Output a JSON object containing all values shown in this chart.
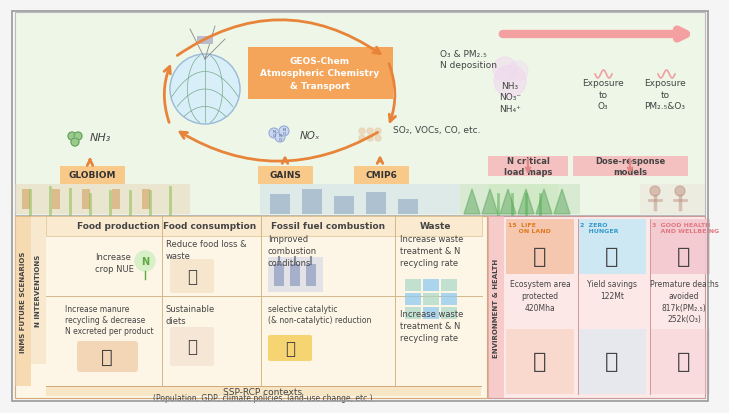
{
  "bg_color": "#f5f5f5",
  "top_panel_bg": "#eef6e8",
  "bottom_left_bg": "#fdf5e6",
  "bottom_right_bg": "#fde8e8",
  "geos_box_bg": "#f5a55a",
  "geos_box_text": "GEOS-Chem\nAtmospheric Chemistry\n& Transport",
  "arrow_color": "#e8843a",
  "pink_arrow_color": "#f5a0a0",
  "model_box_bg": "#f9c98a",
  "model_box_text_color": "#333333",
  "side_label_left1": "INMS FUTURE SCENARIOS",
  "side_label_left2": "N INTERVENTIONS",
  "side_label_right": "ENVIRONMENT & HEALTH",
  "bottom_categories": [
    "Food production",
    "Food consumption",
    "Fossil fuel combustion",
    "Waste"
  ],
  "ssp_text": "SSP-RCP contexts\n(Population, GDP, climate policies, land-use change, etc.)",
  "sdg_labels": [
    "15  LIFE\n     ON LAND",
    "2  ZERO\n    HUNGER",
    "3  GOOD HEALTH\n    AND WELLBEING"
  ],
  "sdg_colors": [
    "#f5c4a8",
    "#c8e8f5",
    "#f5c8d0"
  ],
  "sdg_icon_colors": [
    "#f5c4a8",
    "#c8e8f5",
    "#f5c8d0"
  ],
  "sdg_descriptions": [
    "Ecosystem area\nprotected\n420Mha",
    "Yield savings\n122Mt",
    "Premature deaths\navoided\n817k(PM₂.₅)\n252k(O₃)"
  ],
  "models_top": [
    "GLOBIOM",
    "GAINS",
    "CMIP6"
  ],
  "nh3_label": "NH₃",
  "nox_label": "NOₓ",
  "so2_label": "SO₂, VOCs, CO, etc.",
  "o3_pm_text": "O₃ & PM₂.₅\nN deposition",
  "right_chem1": "NH₃\nNO₃⁻\nNH₄⁺",
  "right_exp1": "Exposure\nto\nO₃",
  "right_exp2": "Exposure\nto\nPM₂.₅&O₃",
  "right_model1": "N critical\nload maps",
  "right_model2": "Dose-response\nmodels",
  "font_color_dark": "#444444",
  "font_color_orange": "#d4700a",
  "border_color": "#bbbbbb",
  "food_prod_items": [
    "Increase\ncrop NUE",
    "Increase manure\nrecycling & decrease\nN excreted per product"
  ],
  "food_cons_items": [
    "Reduce food loss &\nwaste",
    "Sustainable\ndiets"
  ],
  "fossil_items": [
    "Improved\ncombustion\nconditions",
    "selective catalytic\n(& non-catalytic) reduction"
  ],
  "waste_items": [
    "Increase waste\ntreatment & N\nrecycling rate"
  ]
}
